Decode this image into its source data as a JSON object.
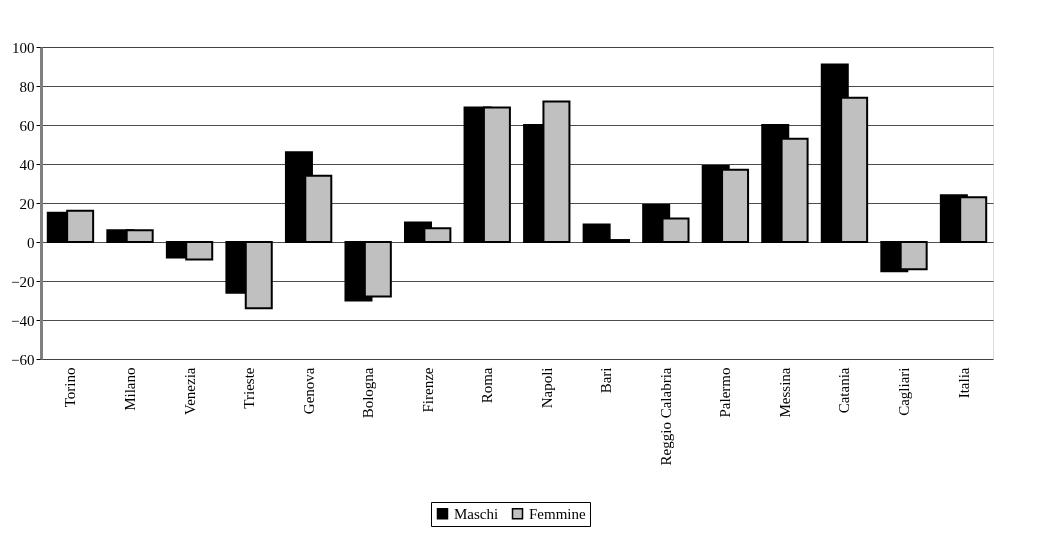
{
  "chart_data": {
    "type": "bar",
    "categories": [
      "Torino",
      "Milano",
      "Venezia",
      "Trieste",
      "Genova",
      "Bologna",
      "Firenze",
      "Roma",
      "Napoli",
      "Bari",
      "Reggio Calabria",
      "Palermo",
      "Messina",
      "Catania",
      "Cagliari",
      "Italia"
    ],
    "series": [
      {
        "name": "Maschi",
        "color": "#000000",
        "values": [
          15,
          6,
          -8,
          -26,
          46,
          -30,
          10,
          69,
          60,
          9,
          19,
          39,
          60,
          91,
          -15,
          24
        ]
      },
      {
        "name": "Femmine",
        "color": "#c0c0c0",
        "values": [
          16,
          6,
          -9,
          -34,
          34,
          -28,
          7,
          69,
          72,
          1,
          12,
          37,
          53,
          74,
          -14,
          23
        ]
      }
    ],
    "ylim": [
      -60,
      100
    ],
    "yticks": [
      -60,
      -40,
      -20,
      0,
      20,
      40,
      60,
      80,
      100
    ],
    "grid": "y",
    "legend": "bottom"
  }
}
